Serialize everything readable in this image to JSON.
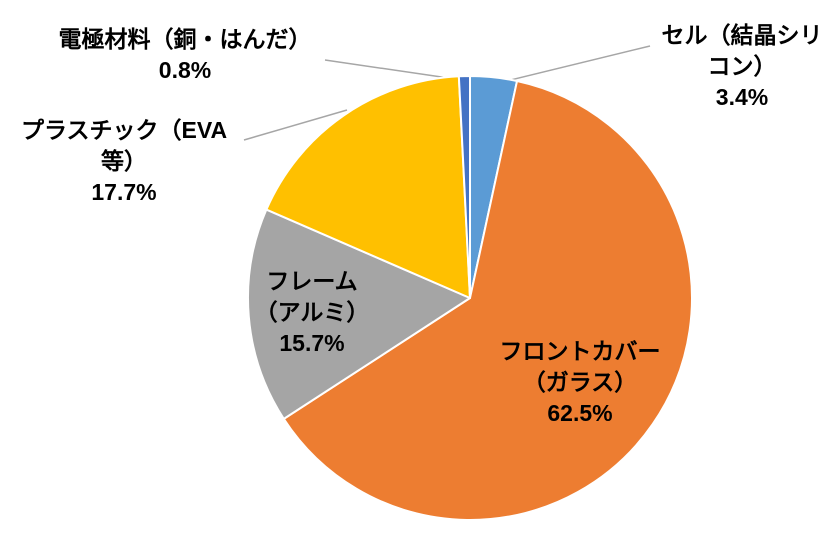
{
  "chart_data": {
    "type": "pie",
    "title": "",
    "unit": "%",
    "start_angle_deg": 0,
    "direction": "clockwise",
    "legend": "none",
    "background": "#FFFFFF",
    "stroke_color": "#FFFFFF",
    "leader_line_color": "#A6A6A6",
    "slices": [
      {
        "label": "セル（結晶シリコン）",
        "value": 3.4,
        "color": "#5B9BD5"
      },
      {
        "label": "フロントカバー（ガラス）",
        "value": 62.5,
        "color": "#ED7D31"
      },
      {
        "label": "フレーム（アルミ）",
        "value": 15.7,
        "color": "#A5A5A5"
      },
      {
        "label": "プラスチック（EVA等）",
        "value": 17.7,
        "color": "#FFC000"
      },
      {
        "label": "電極材料（銅・はんだ）",
        "value": 0.8,
        "color": "#4472C4"
      }
    ],
    "callouts": {
      "cell": {
        "line1": "セル（結晶シリ",
        "line2": "コン）",
        "pct": "3.4%"
      },
      "front_cover": {
        "line1": "フロントカバー",
        "line2": "（ガラス）",
        "pct": "62.5%"
      },
      "frame": {
        "line1": "フレーム",
        "line2": "（アルミ）",
        "pct": "15.7%"
      },
      "plastic": {
        "line1": "プラスチック（EVA",
        "line2": "等）",
        "pct": "17.7%"
      },
      "electrode": {
        "line1": "電極材料（銅・はんだ）",
        "pct": "0.8%"
      }
    }
  }
}
